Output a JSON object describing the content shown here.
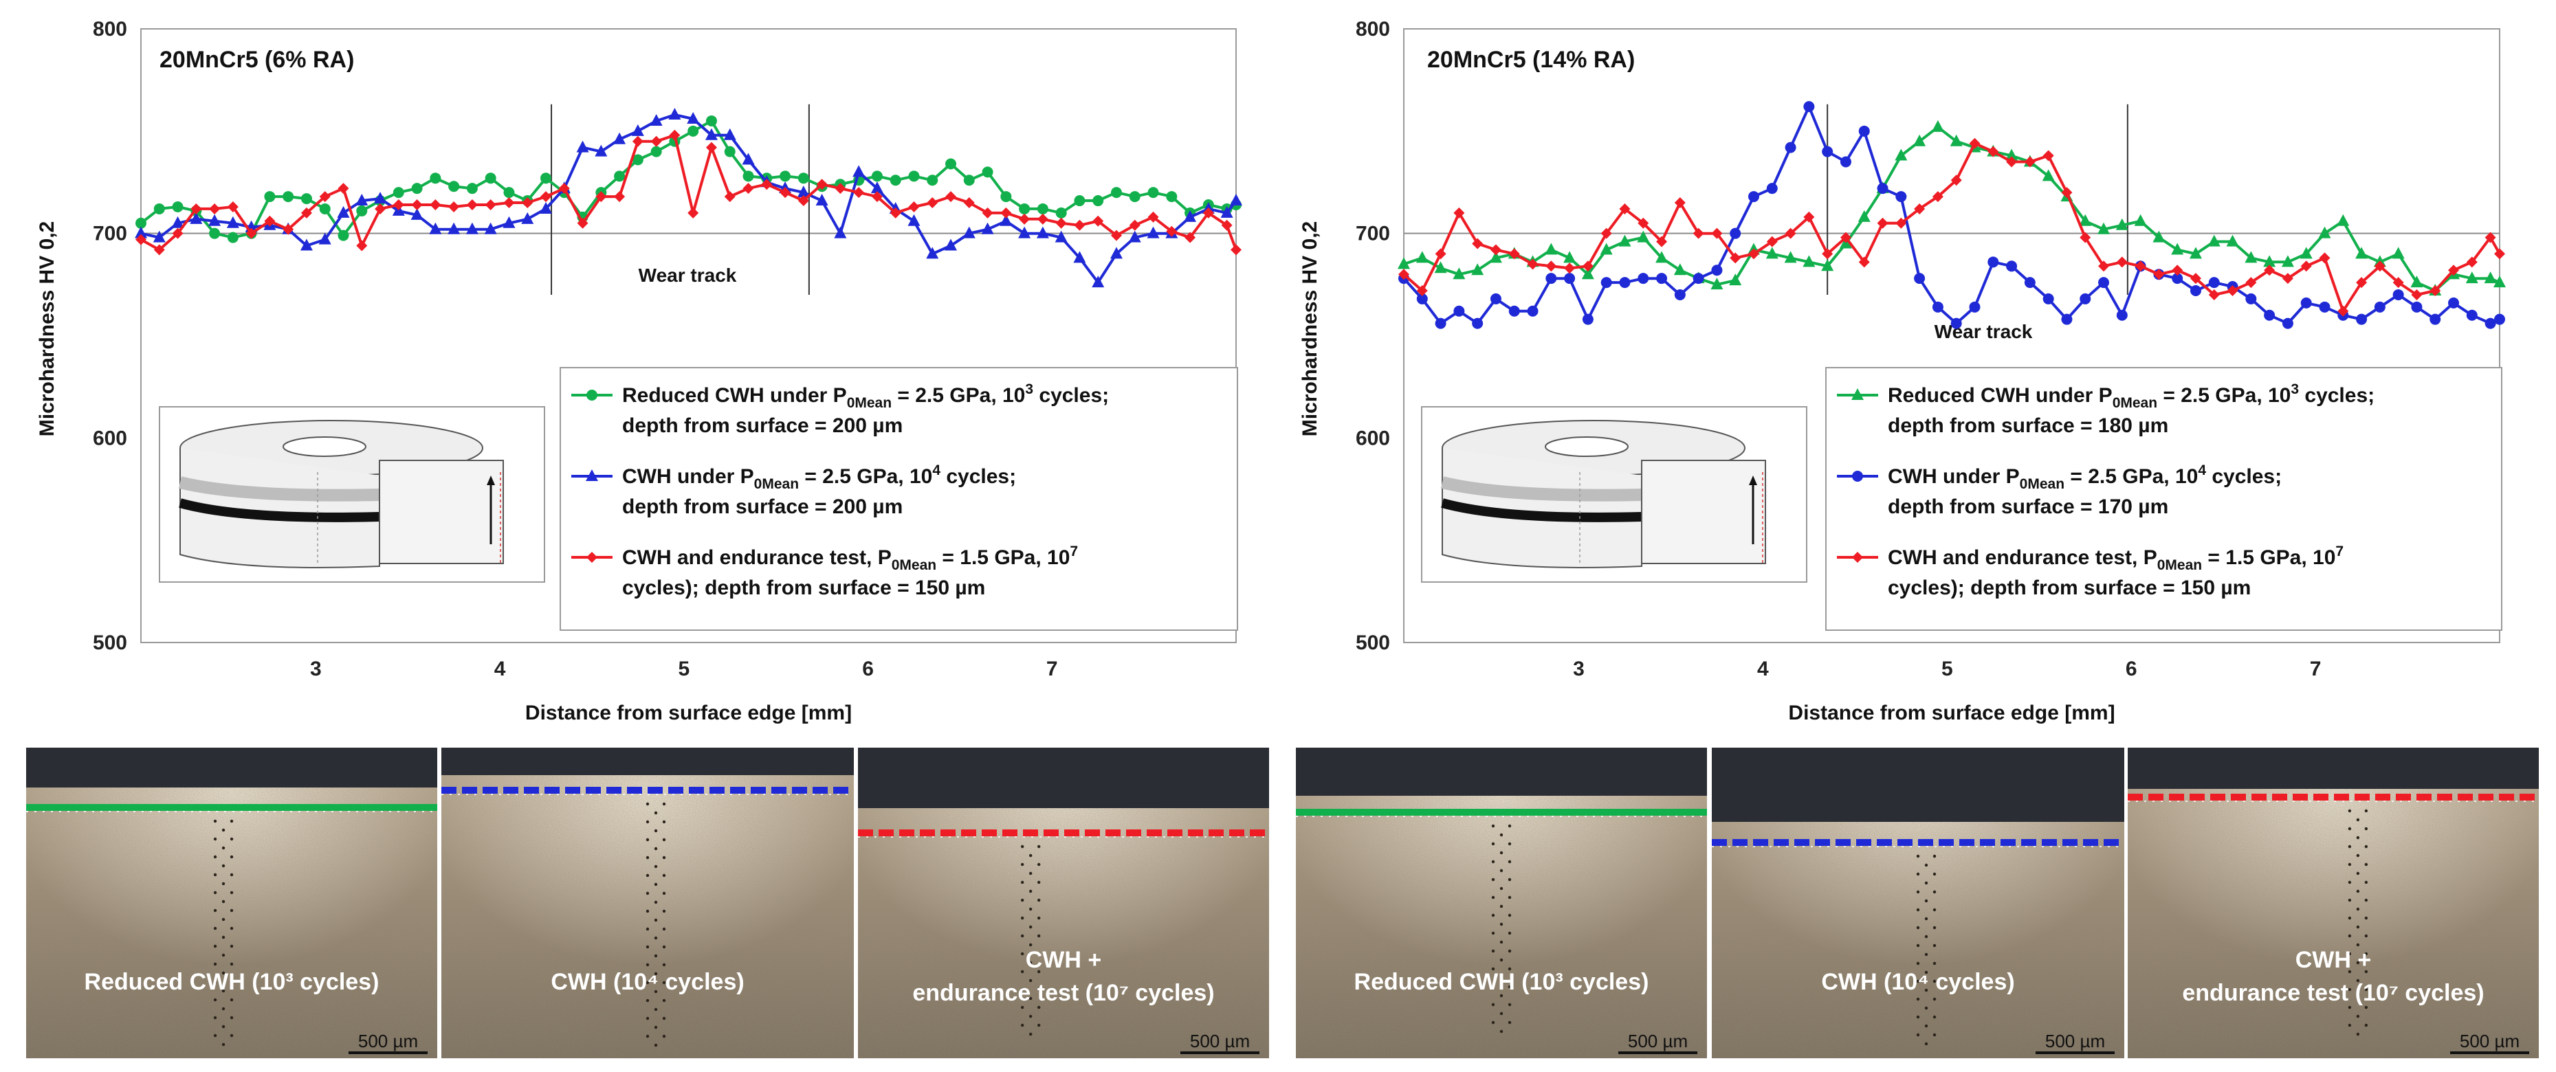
{
  "chart_data": [
    {
      "type": "line",
      "title": "20MnCr5 (6% RA)",
      "xlabel": "Distance from surface edge [mm]",
      "ylabel": "Microhardness HV 0,2",
      "xlim": [
        2.05,
        8.0
      ],
      "ylim": [
        500,
        800
      ],
      "xticks": [
        3,
        4,
        5,
        6,
        7
      ],
      "yticks": [
        500,
        600,
        700,
        800
      ],
      "reference_line": 700,
      "grid": false,
      "annotation": "Wear track",
      "wear_track": [
        4.28,
        5.68
      ],
      "legend_position": "bottom-right",
      "series": [
        {
          "name": "Reduced CWH under P0Mean = 2.5 GPa, 103 cycles; depth from surface = 200 µm",
          "name_parts": [
            "Reduced CWH under P",
            "0Mean",
            " = 2.5 GPa, 10",
            "3",
            " cycles;"
          ],
          "name_line2": "depth from surface = 200 µm",
          "color": "#12b04c",
          "marker": "circle",
          "x": [
            2.05,
            2.15,
            2.25,
            2.35,
            2.45,
            2.55,
            2.65,
            2.75,
            2.85,
            2.95,
            3.05,
            3.15,
            3.25,
            3.35,
            3.45,
            3.55,
            3.65,
            3.75,
            3.85,
            3.95,
            4.05,
            4.15,
            4.25,
            4.35,
            4.45,
            4.55,
            4.65,
            4.75,
            4.85,
            4.95,
            5.05,
            5.15,
            5.25,
            5.35,
            5.45,
            5.55,
            5.65,
            5.75,
            5.85,
            5.95,
            6.05,
            6.15,
            6.25,
            6.35,
            6.45,
            6.55,
            6.65,
            6.75,
            6.85,
            6.95,
            7.05,
            7.15,
            7.25,
            7.35,
            7.45,
            7.55,
            7.65,
            7.75,
            7.85,
            7.95,
            8.0
          ],
          "y": [
            705,
            712,
            713,
            711,
            700,
            698,
            700,
            718,
            718,
            717,
            712,
            699,
            711,
            716,
            720,
            722,
            727,
            723,
            722,
            727,
            720,
            716,
            727,
            720,
            708,
            720,
            728,
            736,
            740,
            745,
            750,
            755,
            740,
            728,
            727,
            728,
            727,
            723,
            724,
            726,
            728,
            726,
            728,
            726,
            734,
            726,
            730,
            718,
            712,
            712,
            710,
            716,
            716,
            720,
            718,
            720,
            718,
            710,
            714,
            712,
            714
          ]
        },
        {
          "name": "CWH under P0Mean = 2.5 GPa, 104 cycles; depth from surface = 200 µm",
          "name_parts": [
            "CWH under P",
            "0Mean",
            " = 2.5 GPa, 10",
            "4",
            " cycles;"
          ],
          "name_line2": "depth from surface = 200 µm",
          "color": "#1f2ad6",
          "marker": "triangle",
          "x": [
            2.05,
            2.15,
            2.25,
            2.35,
            2.45,
            2.55,
            2.65,
            2.75,
            2.85,
            2.95,
            3.05,
            3.15,
            3.25,
            3.35,
            3.45,
            3.55,
            3.65,
            3.75,
            3.85,
            3.95,
            4.05,
            4.15,
            4.25,
            4.35,
            4.45,
            4.55,
            4.65,
            4.75,
            4.85,
            4.95,
            5.05,
            5.15,
            5.25,
            5.35,
            5.45,
            5.55,
            5.65,
            5.75,
            5.85,
            5.95,
            6.05,
            6.15,
            6.25,
            6.35,
            6.45,
            6.55,
            6.65,
            6.75,
            6.85,
            6.95,
            7.05,
            7.15,
            7.25,
            7.35,
            7.45,
            7.55,
            7.65,
            7.75,
            7.85,
            7.95,
            8.0
          ],
          "y": [
            700,
            698,
            705,
            707,
            706,
            705,
            703,
            704,
            702,
            694,
            697,
            710,
            716,
            717,
            711,
            709,
            702,
            702,
            702,
            702,
            705,
            707,
            712,
            722,
            742,
            740,
            746,
            750,
            755,
            758,
            756,
            748,
            748,
            736,
            725,
            722,
            720,
            716,
            700,
            730,
            722,
            712,
            706,
            690,
            694,
            700,
            702,
            706,
            700,
            700,
            698,
            688,
            676,
            690,
            698,
            700,
            700,
            708,
            712,
            710,
            716
          ]
        },
        {
          "name": "CWH and endurance test, P0Mean = 1.5 GPa, 107 cycles); depth from surface = 150 µm",
          "name_parts": [
            "CWH and endurance test, P",
            "0Mean",
            " = 1.5 GPa, 10",
            "7",
            ""
          ],
          "name_line2": "cycles); depth from surface = 150 µm",
          "color": "#ee1c24",
          "marker": "diamond",
          "x": [
            2.05,
            2.15,
            2.25,
            2.35,
            2.45,
            2.55,
            2.65,
            2.75,
            2.85,
            2.95,
            3.05,
            3.15,
            3.25,
            3.35,
            3.45,
            3.55,
            3.65,
            3.75,
            3.85,
            3.95,
            4.05,
            4.15,
            4.25,
            4.35,
            4.45,
            4.55,
            4.65,
            4.75,
            4.85,
            4.95,
            5.05,
            5.15,
            5.25,
            5.35,
            5.45,
            5.55,
            5.65,
            5.75,
            5.85,
            5.95,
            6.05,
            6.15,
            6.25,
            6.35,
            6.45,
            6.55,
            6.65,
            6.75,
            6.85,
            6.95,
            7.05,
            7.15,
            7.25,
            7.35,
            7.45,
            7.55,
            7.65,
            7.75,
            7.85,
            7.95,
            8.0
          ],
          "y": [
            697,
            692,
            700,
            712,
            712,
            713,
            700,
            706,
            702,
            710,
            718,
            722,
            694,
            712,
            714,
            714,
            714,
            713,
            714,
            714,
            715,
            715,
            718,
            722,
            705,
            718,
            718,
            745,
            745,
            748,
            710,
            742,
            718,
            722,
            724,
            720,
            716,
            724,
            722,
            720,
            718,
            710,
            713,
            715,
            718,
            715,
            710,
            710,
            707,
            707,
            705,
            704,
            706,
            699,
            704,
            708,
            701,
            698,
            710,
            704,
            692
          ]
        }
      ]
    },
    {
      "type": "line",
      "title": "20MnCr5 (14% RA)",
      "xlabel": "Distance from surface edge [mm]",
      "ylabel": "Microhardness HV 0,2",
      "xlim": [
        2.05,
        8.0
      ],
      "ylim": [
        500,
        800
      ],
      "xticks": [
        3,
        4,
        5,
        6,
        7
      ],
      "yticks": [
        500,
        600,
        700,
        800
      ],
      "reference_line": 700,
      "grid": false,
      "annotation": "Wear track",
      "wear_track": [
        4.35,
        5.98
      ],
      "legend_position": "bottom-right",
      "series": [
        {
          "name": "Reduced CWH under P0Mean = 2.5 GPa, 103 cycles; depth from surface = 180 µm",
          "name_parts": [
            "Reduced CWH under P",
            "0Mean",
            " = 2.5 GPa, 10",
            "3",
            " cycles;"
          ],
          "name_line2": "depth from surface = 180 µm",
          "color": "#12b04c",
          "marker": "triangle",
          "x": [
            2.05,
            2.15,
            2.25,
            2.35,
            2.45,
            2.55,
            2.65,
            2.75,
            2.85,
            2.95,
            3.05,
            3.15,
            3.25,
            3.35,
            3.45,
            3.55,
            3.65,
            3.75,
            3.85,
            3.95,
            4.05,
            4.15,
            4.25,
            4.35,
            4.45,
            4.55,
            4.65,
            4.75,
            4.85,
            4.95,
            5.05,
            5.15,
            5.25,
            5.35,
            5.45,
            5.55,
            5.65,
            5.75,
            5.85,
            5.95,
            6.05,
            6.15,
            6.25,
            6.35,
            6.45,
            6.55,
            6.65,
            6.75,
            6.85,
            6.95,
            7.05,
            7.15,
            7.25,
            7.35,
            7.45,
            7.55,
            7.65,
            7.75,
            7.85,
            7.95,
            8.0
          ],
          "y": [
            685,
            688,
            683,
            680,
            682,
            688,
            690,
            686,
            692,
            688,
            680,
            692,
            696,
            698,
            688,
            682,
            678,
            675,
            677,
            692,
            690,
            688,
            686,
            684,
            695,
            708,
            722,
            738,
            745,
            752,
            745,
            742,
            740,
            738,
            735,
            728,
            718,
            706,
            702,
            704,
            706,
            698,
            692,
            690,
            696,
            696,
            688,
            686,
            686,
            690,
            700,
            706,
            690,
            686,
            690,
            676,
            672,
            680,
            678,
            678,
            676
          ]
        },
        {
          "name": "CWH under P0Mean = 2.5 GPa, 104 cycles; depth from surface = 170 µm",
          "name_parts": [
            "CWH under P",
            "0Mean",
            " = 2.5 GPa, 10",
            "4",
            " cycles;"
          ],
          "name_line2": "depth from surface = 170 µm",
          "color": "#1f2ad6",
          "marker": "circle",
          "x": [
            2.05,
            2.15,
            2.25,
            2.35,
            2.45,
            2.55,
            2.65,
            2.75,
            2.85,
            2.95,
            3.05,
            3.15,
            3.25,
            3.35,
            3.45,
            3.55,
            3.65,
            3.75,
            3.85,
            3.95,
            4.05,
            4.15,
            4.25,
            4.35,
            4.45,
            4.55,
            4.65,
            4.75,
            4.85,
            4.95,
            5.05,
            5.15,
            5.25,
            5.35,
            5.45,
            5.55,
            5.65,
            5.75,
            5.85,
            5.95,
            6.05,
            6.15,
            6.25,
            6.35,
            6.45,
            6.55,
            6.65,
            6.75,
            6.85,
            6.95,
            7.05,
            7.15,
            7.25,
            7.35,
            7.45,
            7.55,
            7.65,
            7.75,
            7.85,
            7.95,
            8.0
          ],
          "y": [
            678,
            668,
            656,
            662,
            656,
            668,
            662,
            662,
            678,
            678,
            658,
            676,
            676,
            678,
            678,
            670,
            678,
            682,
            700,
            718,
            722,
            742,
            762,
            740,
            735,
            750,
            722,
            718,
            678,
            664,
            656,
            664,
            686,
            684,
            676,
            668,
            658,
            668,
            676,
            660,
            684,
            680,
            678,
            672,
            676,
            674,
            668,
            660,
            656,
            666,
            664,
            660,
            658,
            664,
            670,
            664,
            658,
            666,
            660,
            656,
            658
          ]
        },
        {
          "name": "CWH and endurance test, P0Mean = 1.5 GPa, 107 cycles); depth from surface = 150 µm",
          "name_parts": [
            "CWH and endurance test, P",
            "0Mean",
            " = 1.5 GPa, 10",
            "7",
            ""
          ],
          "name_line2": "cycles); depth from surface = 150 µm",
          "color": "#ee1c24",
          "marker": "diamond",
          "x": [
            2.05,
            2.15,
            2.25,
            2.35,
            2.45,
            2.55,
            2.65,
            2.75,
            2.85,
            2.95,
            3.05,
            3.15,
            3.25,
            3.35,
            3.45,
            3.55,
            3.65,
            3.75,
            3.85,
            3.95,
            4.05,
            4.15,
            4.25,
            4.35,
            4.45,
            4.55,
            4.65,
            4.75,
            4.85,
            4.95,
            5.05,
            5.15,
            5.25,
            5.35,
            5.45,
            5.55,
            5.65,
            5.75,
            5.85,
            5.95,
            6.05,
            6.15,
            6.25,
            6.35,
            6.45,
            6.55,
            6.65,
            6.75,
            6.85,
            6.95,
            7.05,
            7.15,
            7.25,
            7.35,
            7.45,
            7.55,
            7.65,
            7.75,
            7.85,
            7.95,
            8.0
          ],
          "y": [
            680,
            672,
            690,
            710,
            695,
            692,
            690,
            685,
            684,
            683,
            684,
            700,
            712,
            705,
            696,
            715,
            700,
            700,
            688,
            690,
            696,
            700,
            708,
            690,
            698,
            686,
            705,
            705,
            712,
            718,
            726,
            744,
            740,
            735,
            735,
            738,
            720,
            698,
            684,
            686,
            684,
            680,
            682,
            678,
            670,
            672,
            676,
            682,
            678,
            684,
            688,
            662,
            676,
            684,
            676,
            670,
            672,
            682,
            686,
            698,
            690
          ]
        }
      ]
    }
  ],
  "micrographs": [
    {
      "label_lines": [
        "Reduced CWH (10³ cycles)"
      ],
      "scale_bar": "500 µm",
      "line_color": "#12b04c",
      "style": "solid"
    },
    {
      "label_lines": [
        "CWH (10⁴ cycles)"
      ],
      "scale_bar": "",
      "line_color": "#1f2ad6",
      "style": "dashed"
    },
    {
      "label_lines": [
        "CWH +",
        "endurance test (10⁷ cycles)"
      ],
      "scale_bar": "500 µm",
      "line_color": "#ee1c24",
      "style": "dashed"
    },
    {
      "label_lines": [
        "Reduced CWH (10³ cycles)"
      ],
      "scale_bar": "500 µm",
      "line_color": "#12b04c",
      "style": "solid"
    },
    {
      "label_lines": [
        "CWH (10⁴ cycles)"
      ],
      "scale_bar": "500 µm",
      "line_color": "#1f2ad6",
      "style": "dashed"
    },
    {
      "label_lines": [
        "CWH +",
        "endurance test (10⁷ cycles)"
      ],
      "scale_bar": "500 µm",
      "line_color": "#ee1c24",
      "style": "dashed"
    }
  ]
}
